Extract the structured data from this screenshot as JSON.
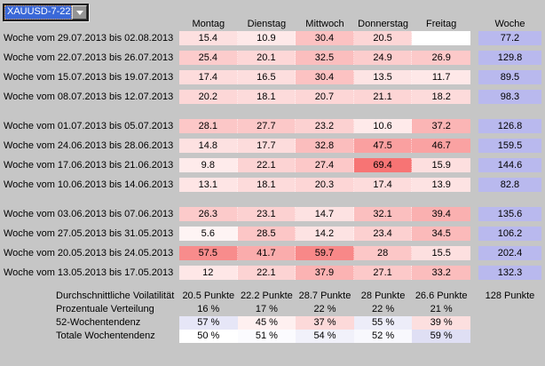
{
  "combo": {
    "value": "XAUUSD-7-22"
  },
  "table": {
    "day_columns": [
      "Montag",
      "Dienstag",
      "Mittwoch",
      "Donnerstag",
      "Freitag"
    ],
    "week_column": "Woche",
    "groups": [
      {
        "rows": [
          {
            "label": "Woche vom 29.07.2013 bis 02.08.2013",
            "days": [
              15.4,
              10.9,
              30.4,
              20.5,
              null
            ],
            "week": 77.2
          },
          {
            "label": "Woche vom 22.07.2013 bis 26.07.2013",
            "days": [
              25.4,
              20.1,
              32.5,
              24.9,
              26.9
            ],
            "week": 129.8
          },
          {
            "label": "Woche vom 15.07.2013 bis 19.07.2013",
            "days": [
              17.4,
              16.5,
              30.4,
              13.5,
              11.7
            ],
            "week": 89.5
          },
          {
            "label": "Woche vom 08.07.2013 bis 12.07.2013",
            "days": [
              20.2,
              18.1,
              20.7,
              21.1,
              18.2
            ],
            "week": 98.3
          }
        ]
      },
      {
        "rows": [
          {
            "label": "Woche vom 01.07.2013 bis 05.07.2013",
            "days": [
              28.1,
              27.7,
              23.2,
              10.6,
              37.2
            ],
            "week": 126.8
          },
          {
            "label": "Woche vom 24.06.2013 bis 28.06.2013",
            "days": [
              14.8,
              17.7,
              32.8,
              47.5,
              46.7
            ],
            "week": 159.5
          },
          {
            "label": "Woche vom 17.06.2013 bis 21.06.2013",
            "days": [
              9.8,
              22.1,
              27.4,
              69.4,
              15.9
            ],
            "week": 144.6
          },
          {
            "label": "Woche vom 10.06.2013 bis 14.06.2013",
            "days": [
              13.1,
              18.1,
              20.3,
              17.4,
              13.9
            ],
            "week": 82.8
          }
        ]
      },
      {
        "rows": [
          {
            "label": "Woche vom 03.06.2013 bis 07.06.2013",
            "days": [
              26.3,
              23.1,
              14.7,
              32.1,
              39.4
            ],
            "week": 135.6
          },
          {
            "label": "Woche vom 27.05.2013 bis 31.05.2013",
            "days": [
              5.6,
              28.5,
              14.2,
              23.4,
              34.5
            ],
            "week": 106.2
          },
          {
            "label": "Woche vom 20.05.2013 bis 24.05.2013",
            "days": [
              57.5,
              41.7,
              59.7,
              28,
              15.5
            ],
            "week": 202.4
          },
          {
            "label": "Woche vom 13.05.2013 bis 17.05.2013",
            "days": [
              12,
              22.1,
              37.9,
              27.1,
              33.2
            ],
            "week": 132.3
          }
        ]
      }
    ]
  },
  "summary": {
    "rows": [
      {
        "label": "Durchschnittliche Voilatilität",
        "type": "plain",
        "cells": [
          "20.5 Punkte",
          "22.2 Punkte",
          "28.7 Punkte",
          "28 Punkte",
          "26.6 Punkte"
        ],
        "week_cell": "128 Punkte"
      },
      {
        "label": "Prozentuale Verteilung",
        "type": "plain",
        "cells": [
          "16 %",
          "17 %",
          "22 %",
          "22 %",
          "21 %"
        ],
        "week_cell": ""
      },
      {
        "label": "52-Wochentendenz",
        "type": "tendency",
        "cells": [
          57,
          45,
          37,
          55,
          39
        ],
        "week_cell": ""
      },
      {
        "label": "Totale Wochentendenz",
        "type": "tendency",
        "cells": [
          50,
          51,
          54,
          52,
          59
        ],
        "week_cell": ""
      }
    ],
    "percent_suffix": " %"
  },
  "colors": {
    "background": "#c6c6c6",
    "week_cell": "#b9b9ee",
    "selection_blue": "#3a68d8",
    "heat_max": 70
  }
}
